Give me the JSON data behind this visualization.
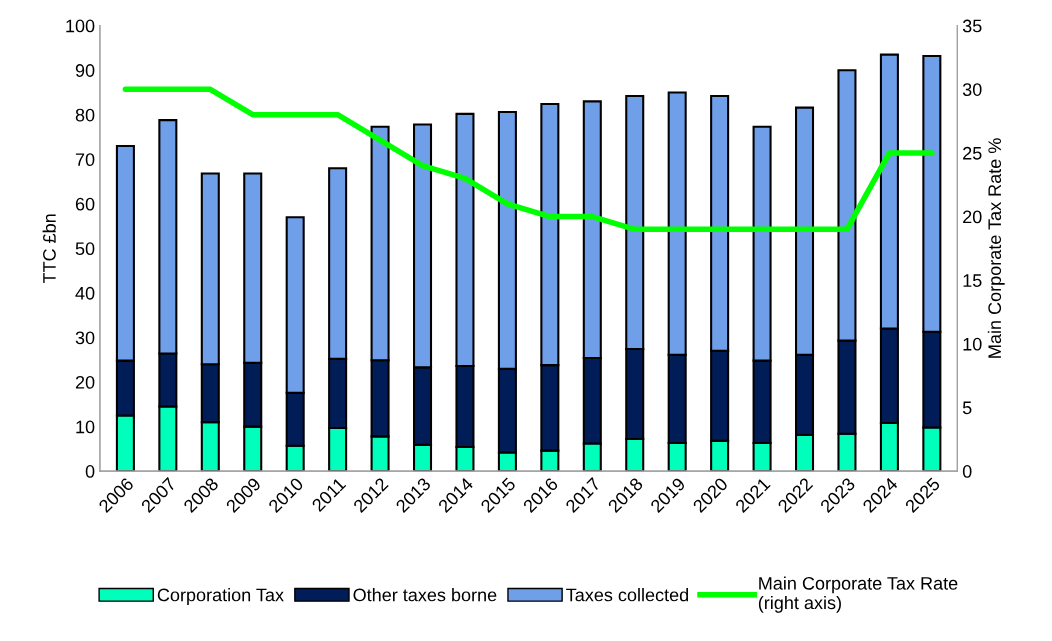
{
  "chart_data": {
    "type": "bar",
    "stacked": true,
    "ylabel": "TTC £bn",
    "y2label": "Main Corporate Tax Rate %",
    "categories": [
      "2006",
      "2007",
      "2008",
      "2009",
      "2010",
      "2011",
      "2012",
      "2013",
      "2014",
      "2015",
      "2016",
      "2017",
      "2018",
      "2019",
      "2020",
      "2021",
      "2022",
      "2023",
      "2024",
      "2025"
    ],
    "series": [
      {
        "name": "Corporation Tax",
        "color": "#00ffbb",
        "values": [
          12.5,
          14.5,
          11,
          10,
          5.7,
          9.7,
          7.8,
          5.9,
          5.4,
          4.2,
          4.6,
          6.2,
          7.2,
          6.3,
          6.8,
          6.3,
          8.1,
          8.4,
          10.8,
          9.8
        ]
      },
      {
        "name": "Other taxes borne",
        "color": "#001d57",
        "values": [
          12.3,
          11.9,
          13,
          14.3,
          11.9,
          15.5,
          17.1,
          17.4,
          18.2,
          18.8,
          19.2,
          19.2,
          20.2,
          19.8,
          20.2,
          18.5,
          18,
          20.9,
          21.2,
          21.5
        ]
      },
      {
        "name": "Taxes collected",
        "color": "#6e9fe8",
        "values": [
          48.2,
          52.4,
          42.8,
          42.5,
          39.4,
          42.8,
          52.4,
          54.5,
          56.6,
          57.6,
          58.6,
          57.6,
          56.8,
          58.9,
          57.2,
          52.5,
          55.5,
          60.7,
          61.5,
          61.9
        ]
      },
      {
        "name": "Main Corporate Tax Rate\n(right axis)",
        "type": "line",
        "axis": "y2",
        "color": "#00ff00",
        "values": [
          30,
          30,
          30,
          28,
          28,
          28,
          26,
          24,
          23,
          21,
          20,
          20,
          19,
          19,
          19,
          19,
          19,
          19,
          25,
          25
        ]
      }
    ],
    "ylim": [
      0,
      100
    ],
    "yticks": [
      0,
      10,
      20,
      30,
      40,
      50,
      60,
      70,
      80,
      90,
      100
    ],
    "y2lim": [
      0,
      35
    ],
    "y2ticks": [
      0,
      5,
      10,
      15,
      20,
      25,
      30,
      35
    ],
    "grid": false,
    "legend": "bottom"
  }
}
